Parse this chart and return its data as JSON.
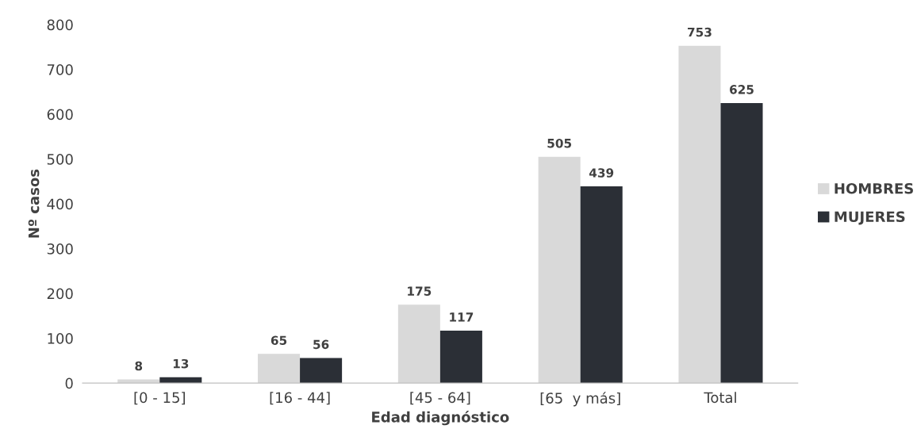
{
  "chart_data": {
    "type": "bar",
    "xlabel": "Edad diagnóstico",
    "ylabel": "Nº casos",
    "categories": [
      "[0 - 15]",
      "[16 - 44]",
      "[45 - 64]",
      "[65  y más]",
      "Total"
    ],
    "series": [
      {
        "name": "HOMBRES",
        "color": "#d9d9d9",
        "values": [
          8,
          65,
          175,
          505,
          753
        ]
      },
      {
        "name": "MUJERES",
        "color": "#2b2f36",
        "values": [
          13,
          56,
          117,
          439,
          625
        ]
      }
    ],
    "ylim": [
      0,
      800
    ],
    "yticks": [
      0,
      100,
      200,
      300,
      400,
      500,
      600,
      700,
      800
    ],
    "data_labels": true,
    "grid": false,
    "legend": "right"
  }
}
